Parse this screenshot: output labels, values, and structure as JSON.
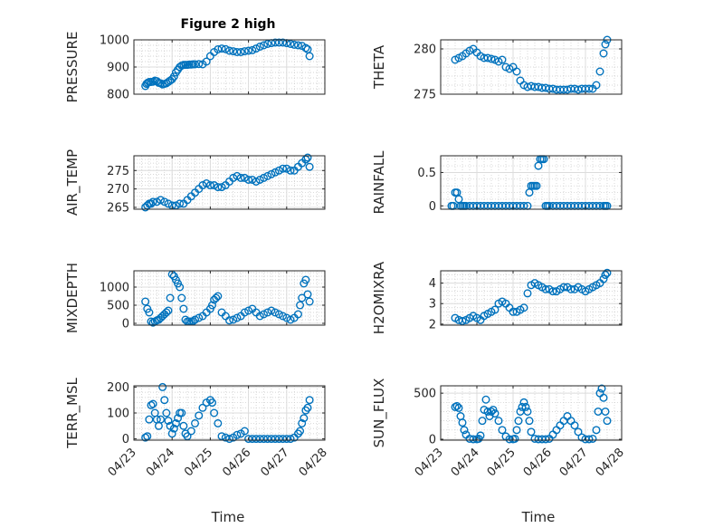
{
  "figure": {
    "title": "Figure 2 high",
    "marker_color": "#0072BD",
    "x_tick_labels": [
      "04/23",
      "04/24",
      "04/25",
      "04/26",
      "04/27",
      "04/28"
    ],
    "x_label": "Time"
  },
  "chart_data": [
    {
      "type": "scatter",
      "ylabel": "PRESSURE",
      "ylim": [
        800,
        1000
      ],
      "yticks": [
        800,
        900,
        1000
      ],
      "xlim": [
        0,
        5
      ],
      "grid": true,
      "x": [
        0.3,
        0.33,
        0.36,
        0.4,
        0.45,
        0.5,
        0.55,
        0.6,
        0.65,
        0.7,
        0.75,
        0.8,
        0.85,
        0.9,
        0.95,
        1.0,
        1.05,
        1.1,
        1.15,
        1.2,
        1.25,
        1.3,
        1.35,
        1.4,
        1.45,
        1.5,
        1.55,
        1.6,
        1.7,
        1.8,
        1.9,
        2.0,
        2.1,
        2.2,
        2.3,
        2.4,
        2.5,
        2.6,
        2.7,
        2.8,
        2.9,
        3.0,
        3.1,
        3.2,
        3.3,
        3.4,
        3.5,
        3.6,
        3.7,
        3.8,
        3.9,
        4.0,
        4.1,
        4.2,
        4.3,
        4.4,
        4.5,
        4.55,
        4.6
      ],
      "y": [
        830,
        838,
        842,
        845,
        845,
        846,
        850,
        848,
        842,
        840,
        836,
        838,
        840,
        845,
        850,
        855,
        865,
        880,
        890,
        900,
        905,
        908,
        908,
        908,
        909,
        909,
        910,
        910,
        911,
        910,
        920,
        940,
        955,
        965,
        968,
        966,
        960,
        958,
        955,
        955,
        958,
        960,
        962,
        968,
        975,
        980,
        985,
        988,
        990,
        990,
        990,
        988,
        985,
        982,
        980,
        978,
        970,
        965,
        940
      ]
    },
    {
      "type": "scatter",
      "ylabel": "THETA",
      "ylim": [
        275,
        281
      ],
      "yticks": [
        275,
        280
      ],
      "xlim": [
        0,
        5
      ],
      "grid": true,
      "x": [
        0.4,
        0.5,
        0.6,
        0.7,
        0.8,
        0.9,
        1.0,
        1.1,
        1.2,
        1.3,
        1.4,
        1.5,
        1.6,
        1.7,
        1.8,
        1.9,
        2.0,
        2.1,
        2.2,
        2.3,
        2.4,
        2.5,
        2.6,
        2.7,
        2.8,
        2.9,
        3.0,
        3.1,
        3.2,
        3.3,
        3.4,
        3.5,
        3.6,
        3.7,
        3.8,
        3.9,
        4.0,
        4.1,
        4.2,
        4.3,
        4.4,
        4.5,
        4.55,
        4.6
      ],
      "y": [
        278.8,
        279.0,
        279.2,
        279.5,
        279.8,
        280.0,
        279.6,
        279.2,
        279.0,
        279.0,
        278.9,
        278.8,
        278.6,
        278.8,
        278.0,
        277.8,
        278.0,
        277.5,
        276.5,
        276.0,
        275.8,
        275.9,
        275.8,
        275.8,
        275.7,
        275.7,
        275.6,
        275.6,
        275.5,
        275.5,
        275.5,
        275.5,
        275.6,
        275.6,
        275.5,
        275.6,
        275.6,
        275.6,
        275.6,
        276.0,
        277.5,
        279.5,
        280.5,
        281.0
      ]
    },
    {
      "type": "scatter",
      "ylabel": "AIR_TEMP",
      "ylim": [
        264.5,
        279
      ],
      "yticks": [
        265,
        270,
        275
      ],
      "xlim": [
        0,
        5
      ],
      "grid": true,
      "x": [
        0.3,
        0.35,
        0.4,
        0.45,
        0.5,
        0.6,
        0.7,
        0.8,
        0.9,
        1.0,
        1.1,
        1.2,
        1.3,
        1.4,
        1.5,
        1.6,
        1.7,
        1.8,
        1.9,
        2.0,
        2.1,
        2.2,
        2.3,
        2.4,
        2.5,
        2.6,
        2.7,
        2.8,
        2.9,
        3.0,
        3.1,
        3.2,
        3.3,
        3.4,
        3.5,
        3.6,
        3.7,
        3.8,
        3.9,
        4.0,
        4.1,
        4.2,
        4.3,
        4.4,
        4.5,
        4.55,
        4.6
      ],
      "y": [
        265,
        265.5,
        266,
        266,
        266.5,
        266.5,
        267,
        266.5,
        266,
        265.5,
        265.5,
        266,
        266,
        267,
        268,
        269,
        270,
        271,
        271.5,
        271,
        271,
        270.5,
        270.5,
        271,
        272,
        273,
        273.5,
        273,
        273,
        272.5,
        272.5,
        272,
        272.5,
        273,
        273.5,
        274,
        274.5,
        275,
        275.5,
        275.5,
        275,
        275,
        276,
        277,
        278,
        278.5,
        276
      ]
    },
    {
      "type": "scatter",
      "ylabel": "RAINFALL",
      "ylim": [
        -0.05,
        0.75
      ],
      "yticks": [
        0,
        0.5
      ],
      "xlim": [
        0,
        5
      ],
      "grid": true,
      "x": [
        0.3,
        0.35,
        0.4,
        0.45,
        0.5,
        0.55,
        0.6,
        0.65,
        0.7,
        0.8,
        0.9,
        1.0,
        1.1,
        1.2,
        1.3,
        1.4,
        1.5,
        1.6,
        1.7,
        1.8,
        1.9,
        2.0,
        2.1,
        2.2,
        2.3,
        2.4,
        2.45,
        2.5,
        2.55,
        2.6,
        2.65,
        2.7,
        2.75,
        2.8,
        2.85,
        2.9,
        2.95,
        3.0,
        3.1,
        3.2,
        3.3,
        3.4,
        3.5,
        3.6,
        3.7,
        3.8,
        3.9,
        4.0,
        4.1,
        4.2,
        4.3,
        4.4,
        4.5,
        4.55,
        4.6
      ],
      "y": [
        0,
        0,
        0.2,
        0.2,
        0.1,
        0,
        0,
        0,
        0,
        0,
        0,
        0,
        0,
        0,
        0,
        0,
        0,
        0,
        0,
        0,
        0,
        0,
        0,
        0,
        0,
        0,
        0.2,
        0.3,
        0.3,
        0.3,
        0.3,
        0.6,
        0.7,
        0.7,
        0.7,
        0,
        0,
        0,
        0,
        0,
        0,
        0,
        0,
        0,
        0,
        0,
        0,
        0,
        0,
        0,
        0,
        0,
        0,
        0,
        0
      ]
    },
    {
      "type": "scatter",
      "ylabel": "MIXDEPTH",
      "ylim": [
        -50,
        1450
      ],
      "yticks": [
        0,
        500,
        1000
      ],
      "xlim": [
        0,
        5
      ],
      "grid": true,
      "x": [
        0.3,
        0.35,
        0.4,
        0.45,
        0.5,
        0.55,
        0.6,
        0.65,
        0.7,
        0.75,
        0.8,
        0.85,
        0.9,
        0.95,
        1.0,
        1.05,
        1.1,
        1.15,
        1.2,
        1.25,
        1.3,
        1.35,
        1.4,
        1.45,
        1.5,
        1.55,
        1.6,
        1.7,
        1.8,
        1.9,
        2.0,
        2.05,
        2.1,
        2.15,
        2.2,
        2.3,
        2.4,
        2.5,
        2.6,
        2.7,
        2.8,
        2.9,
        3.0,
        3.1,
        3.2,
        3.3,
        3.4,
        3.5,
        3.6,
        3.7,
        3.8,
        3.9,
        4.0,
        4.1,
        4.2,
        4.3,
        4.35,
        4.4,
        4.45,
        4.5,
        4.55,
        4.6
      ],
      "y": [
        600,
        400,
        300,
        50,
        20,
        50,
        80,
        100,
        150,
        200,
        250,
        300,
        350,
        700,
        1350,
        1300,
        1200,
        1100,
        1000,
        700,
        400,
        100,
        50,
        50,
        50,
        60,
        100,
        150,
        200,
        300,
        400,
        500,
        650,
        700,
        750,
        300,
        200,
        80,
        100,
        150,
        200,
        300,
        350,
        400,
        300,
        200,
        250,
        300,
        350,
        300,
        250,
        200,
        150,
        100,
        150,
        250,
        500,
        700,
        1100,
        1200,
        800,
        600
      ]
    },
    {
      "type": "scatter",
      "ylabel": "H2OMIXRA",
      "ylim": [
        1.95,
        4.6
      ],
      "yticks": [
        2,
        3,
        4
      ],
      "xlim": [
        0,
        5
      ],
      "grid": true,
      "x": [
        0.4,
        0.5,
        0.6,
        0.7,
        0.8,
        0.9,
        1.0,
        1.1,
        1.2,
        1.3,
        1.4,
        1.5,
        1.6,
        1.7,
        1.8,
        1.9,
        2.0,
        2.1,
        2.2,
        2.3,
        2.4,
        2.5,
        2.6,
        2.7,
        2.8,
        2.9,
        3.0,
        3.1,
        3.2,
        3.3,
        3.4,
        3.5,
        3.6,
        3.7,
        3.8,
        3.9,
        4.0,
        4.1,
        4.2,
        4.3,
        4.4,
        4.5,
        4.55,
        4.6
      ],
      "y": [
        2.3,
        2.2,
        2.15,
        2.2,
        2.3,
        2.4,
        2.3,
        2.2,
        2.4,
        2.5,
        2.6,
        2.7,
        3.0,
        3.1,
        3.0,
        2.8,
        2.6,
        2.6,
        2.7,
        2.8,
        3.5,
        3.9,
        4.0,
        3.9,
        3.8,
        3.7,
        3.7,
        3.6,
        3.6,
        3.7,
        3.8,
        3.8,
        3.7,
        3.7,
        3.8,
        3.7,
        3.6,
        3.7,
        3.8,
        3.9,
        4.0,
        4.2,
        4.4,
        4.5
      ]
    },
    {
      "type": "scatter",
      "ylabel": "TERR_MSL",
      "ylim": [
        -5,
        205
      ],
      "yticks": [
        0,
        100,
        200
      ],
      "xlim": [
        0,
        5
      ],
      "grid": true,
      "x": [
        0.3,
        0.35,
        0.4,
        0.45,
        0.5,
        0.55,
        0.6,
        0.65,
        0.7,
        0.75,
        0.8,
        0.85,
        0.9,
        0.95,
        1.0,
        1.05,
        1.1,
        1.15,
        1.2,
        1.25,
        1.3,
        1.35,
        1.4,
        1.5,
        1.6,
        1.7,
        1.8,
        1.9,
        2.0,
        2.05,
        2.1,
        2.2,
        2.3,
        2.4,
        2.5,
        2.6,
        2.7,
        2.8,
        2.9,
        3.0,
        3.1,
        3.2,
        3.3,
        3.4,
        3.5,
        3.6,
        3.7,
        3.8,
        3.9,
        4.0,
        4.1,
        4.2,
        4.3,
        4.35,
        4.4,
        4.45,
        4.5,
        4.55,
        4.6
      ],
      "y": [
        5,
        10,
        75,
        130,
        135,
        100,
        75,
        50,
        75,
        200,
        150,
        100,
        70,
        50,
        20,
        40,
        60,
        80,
        100,
        100,
        50,
        20,
        10,
        30,
        60,
        90,
        120,
        140,
        150,
        140,
        100,
        60,
        10,
        5,
        0,
        5,
        15,
        20,
        30,
        0,
        0,
        0,
        0,
        0,
        0,
        0,
        0,
        0,
        0,
        0,
        0,
        5,
        20,
        30,
        60,
        80,
        110,
        120,
        150
      ]
    },
    {
      "type": "scatter",
      "ylabel": "SUN_FLUX",
      "ylim": [
        -10,
        580
      ],
      "yticks": [
        0,
        500
      ],
      "xlim": [
        0,
        5
      ],
      "grid": true,
      "x": [
        0.4,
        0.45,
        0.5,
        0.55,
        0.6,
        0.65,
        0.7,
        0.8,
        0.9,
        1.0,
        1.05,
        1.1,
        1.15,
        1.2,
        1.25,
        1.3,
        1.35,
        1.4,
        1.45,
        1.5,
        1.6,
        1.7,
        1.8,
        1.9,
        2.0,
        2.05,
        2.1,
        2.15,
        2.2,
        2.25,
        2.3,
        2.35,
        2.4,
        2.45,
        2.5,
        2.6,
        2.7,
        2.8,
        2.9,
        3.0,
        3.1,
        3.2,
        3.3,
        3.4,
        3.5,
        3.6,
        3.7,
        3.8,
        3.9,
        4.0,
        4.1,
        4.2,
        4.3,
        4.35,
        4.4,
        4.45,
        4.5,
        4.55,
        4.6
      ],
      "y": [
        350,
        360,
        340,
        250,
        180,
        100,
        50,
        5,
        0,
        0,
        5,
        40,
        200,
        320,
        430,
        300,
        250,
        300,
        320,
        280,
        200,
        100,
        30,
        0,
        0,
        5,
        100,
        200,
        300,
        350,
        400,
        350,
        300,
        200,
        80,
        5,
        0,
        0,
        0,
        5,
        50,
        100,
        150,
        200,
        250,
        200,
        150,
        80,
        20,
        0,
        0,
        5,
        100,
        300,
        500,
        550,
        450,
        300,
        200
      ]
    }
  ]
}
